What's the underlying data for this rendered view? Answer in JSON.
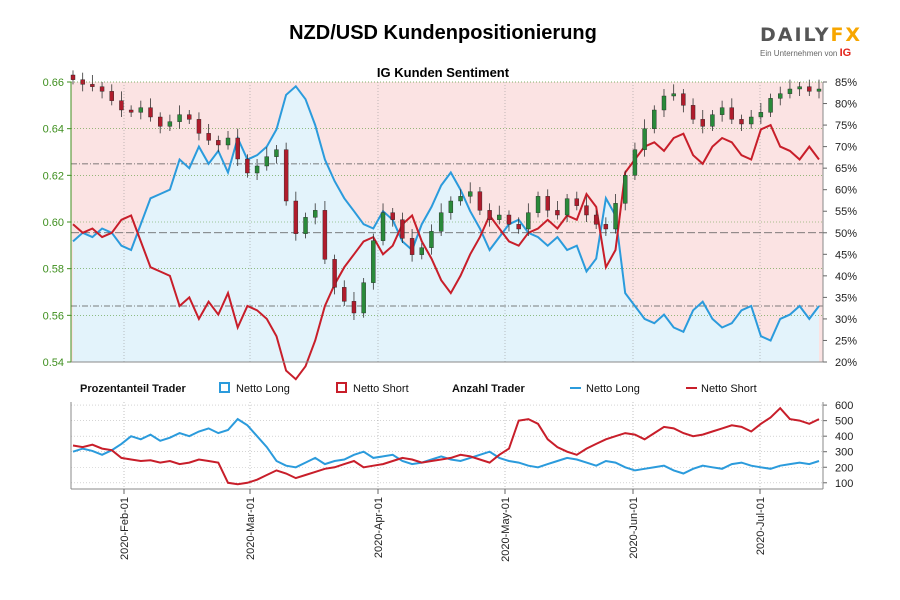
{
  "header": {
    "title": "NZD/USD Kundenpositionierung",
    "brand_main": "DAILY",
    "brand_accent": "FX",
    "brand_sub": "Ein Unternehmen von",
    "brand_sub_ig": "IG"
  },
  "colors": {
    "long": "#2b9bdc",
    "short": "#c81e2a",
    "up_candle": "#2a8a3a",
    "down_candle": "#b01c2c",
    "long_fill": "#e3f3fb",
    "short_fill": "#fbe3e3",
    "left_axis": "#3f8f1f"
  },
  "chart_data": [
    {
      "type": "line",
      "title": "IG Kunden Sentiment",
      "subtype": "candlestick_with_sentiment",
      "x_ticks": [
        "2020-Feb-01",
        "2020-Mar-01",
        "2020-Apr-01",
        "2020-May-01",
        "2020-Jun-01",
        "2020-Jul-01"
      ],
      "y_left_ticks": [
        "0.54",
        "0.56",
        "0.58",
        "0.60",
        "0.62",
        "0.64",
        "0.66"
      ],
      "y_left_range": [
        0.54,
        0.66
      ],
      "y_right_ticks": [
        "20%",
        "25%",
        "30%",
        "35%",
        "40%",
        "45%",
        "50%",
        "55%",
        "60%",
        "65%",
        "70%",
        "75%",
        "80%",
        "85%"
      ],
      "y_right_range": [
        20,
        85
      ],
      "reference_lines_pct": [
        33,
        50,
        66
      ],
      "price_series": {
        "name": "NZD/USD",
        "close": [
          0.661,
          0.659,
          0.658,
          0.656,
          0.652,
          0.648,
          0.647,
          0.649,
          0.645,
          0.641,
          0.643,
          0.646,
          0.644,
          0.638,
          0.635,
          0.633,
          0.636,
          0.627,
          0.621,
          0.624,
          0.628,
          0.631,
          0.609,
          0.595,
          0.602,
          0.605,
          0.584,
          0.572,
          0.566,
          0.561,
          0.574,
          0.592,
          0.604,
          0.601,
          0.593,
          0.586,
          0.589,
          0.596,
          0.604,
          0.609,
          0.611,
          0.613,
          0.605,
          0.601,
          0.603,
          0.599,
          0.597,
          0.604,
          0.611,
          0.605,
          0.603,
          0.61,
          0.607,
          0.603,
          0.599,
          0.597,
          0.608,
          0.62,
          0.631,
          0.64,
          0.648,
          0.654,
          0.655,
          0.65,
          0.644,
          0.641,
          0.646,
          0.649,
          0.644,
          0.642,
          0.645,
          0.647,
          0.653,
          0.655,
          0.657,
          0.658,
          0.656,
          0.657
        ]
      },
      "long_pct_series": {
        "name": "Netto Long",
        "values": [
          48,
          50,
          49,
          51,
          50,
          47,
          46,
          52,
          58,
          59,
          60,
          67,
          65,
          70,
          66,
          69,
          64,
          72,
          67,
          68,
          70,
          74,
          82,
          84,
          81,
          75,
          67,
          62,
          58,
          55,
          52,
          51,
          55,
          53,
          48,
          46,
          52,
          56,
          61,
          64,
          60,
          55,
          51,
          46,
          49,
          52,
          53,
          50,
          49,
          47,
          49,
          46,
          47,
          41,
          44,
          58,
          54,
          36,
          33,
          30,
          29,
          31,
          28,
          27,
          32,
          34,
          30,
          28,
          29,
          32,
          33,
          26,
          25,
          30,
          31,
          33,
          30,
          33
        ]
      },
      "short_pct_series": {
        "name": "Netto Short",
        "values": [
          52,
          50,
          51,
          49,
          50,
          53,
          54,
          48,
          42,
          41,
          40,
          33,
          35,
          30,
          34,
          31,
          36,
          28,
          33,
          32,
          30,
          26,
          18,
          16,
          19,
          25,
          33,
          38,
          42,
          45,
          48,
          49,
          45,
          47,
          52,
          54,
          48,
          44,
          39,
          36,
          40,
          45,
          49,
          54,
          51,
          48,
          47,
          50,
          51,
          53,
          51,
          54,
          53,
          59,
          56,
          42,
          46,
          64,
          67,
          70,
          71,
          69,
          72,
          73,
          68,
          66,
          70,
          72,
          71,
          68,
          67,
          74,
          75,
          70,
          69,
          67,
          70,
          67
        ]
      }
    },
    {
      "type": "line",
      "title": "",
      "legend_label_pct": "Prozentanteil Trader",
      "legend_label_count": "Anzahl Trader",
      "y_right_ticks": [
        "100",
        "200",
        "300",
        "400",
        "500",
        "600"
      ],
      "y_right_range": [
        60,
        620
      ],
      "series": [
        {
          "name": "Netto Long",
          "kind": "percent_box",
          "values": [
            300,
            320,
            305,
            280,
            310,
            350,
            400,
            380,
            410,
            370,
            390,
            420,
            400,
            430,
            450,
            420,
            440,
            510,
            470,
            400,
            330,
            240,
            210,
            200,
            230,
            260,
            220,
            240,
            250,
            280,
            300,
            260,
            270,
            280,
            240,
            220,
            230,
            250,
            270,
            250,
            240,
            260,
            280,
            300,
            260,
            240,
            230,
            210,
            200,
            220,
            240,
            260,
            250,
            230,
            210,
            240,
            230,
            200,
            180,
            190,
            200,
            210,
            180,
            160,
            190,
            210,
            200,
            190,
            220,
            230,
            210,
            200,
            190,
            210,
            220,
            230,
            220,
            240
          ]
        },
        {
          "name": "Netto Short",
          "kind": "percent_box",
          "values": [
            340,
            330,
            345,
            320,
            310,
            260,
            250,
            240,
            245,
            230,
            240,
            220,
            230,
            250,
            240,
            230,
            100,
            90,
            100,
            120,
            150,
            180,
            160,
            130,
            150,
            170,
            190,
            200,
            220,
            240,
            200,
            210,
            220,
            240,
            260,
            250,
            230,
            240,
            250,
            260,
            280,
            270,
            250,
            230,
            280,
            320,
            500,
            510,
            480,
            380,
            330,
            300,
            280,
            320,
            350,
            380,
            400,
            420,
            410,
            380,
            420,
            460,
            450,
            420,
            400,
            410,
            430,
            450,
            470,
            460,
            430,
            480,
            520,
            580,
            510,
            500,
            480,
            510
          ]
        },
        {
          "name": "Netto Long",
          "kind": "count_line",
          "values": []
        },
        {
          "name": "Netto Short",
          "kind": "count_line",
          "values": []
        }
      ]
    }
  ]
}
